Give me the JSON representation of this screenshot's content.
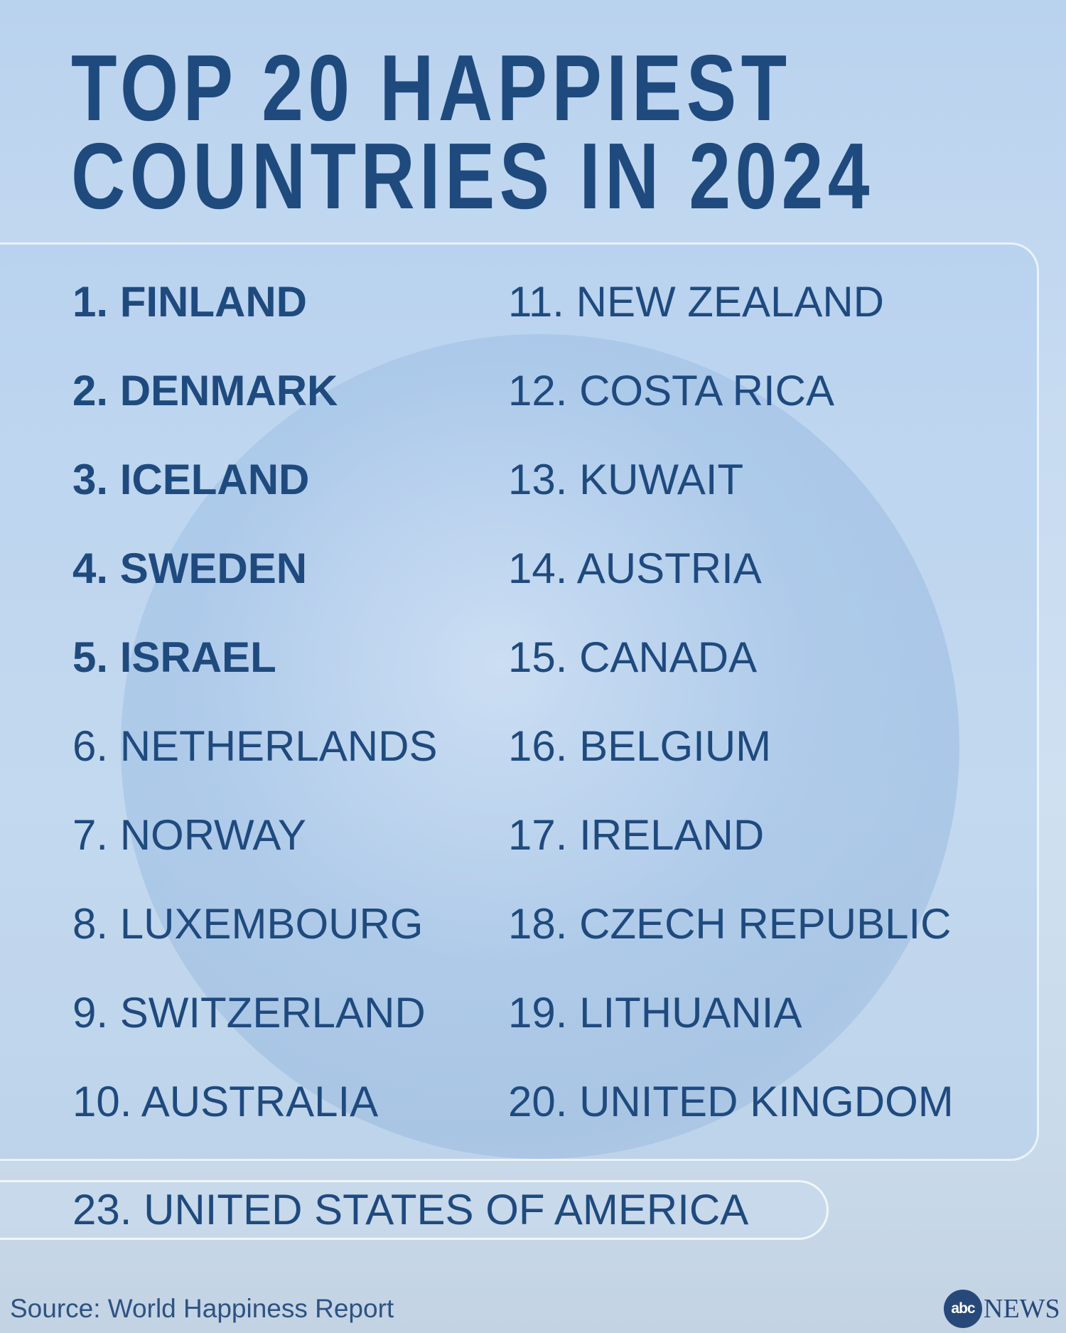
{
  "title": {
    "line1": "TOP 20 HAPPIEST",
    "line2": "COUNTRIES IN 2024"
  },
  "rankings": [
    {
      "label": "1. FINLAND",
      "bold": true
    },
    {
      "label": "2. DENMARK",
      "bold": true
    },
    {
      "label": "3. ICELAND",
      "bold": true
    },
    {
      "label": "4. SWEDEN",
      "bold": true
    },
    {
      "label": "5. ISRAEL",
      "bold": true
    },
    {
      "label": "6. NETHERLANDS",
      "bold": false
    },
    {
      "label": "7. NORWAY",
      "bold": false
    },
    {
      "label": "8. LUXEMBOURG",
      "bold": false
    },
    {
      "label": "9. SWITZERLAND",
      "bold": false
    },
    {
      "label": "10. AUSTRALIA",
      "bold": false
    },
    {
      "label": "11. NEW ZEALAND",
      "bold": false
    },
    {
      "label": "12. COSTA RICA",
      "bold": false
    },
    {
      "label": "13. KUWAIT",
      "bold": false
    },
    {
      "label": "14. AUSTRIA",
      "bold": false
    },
    {
      "label": "15. CANADA",
      "bold": false
    },
    {
      "label": "16. BELGIUM",
      "bold": false
    },
    {
      "label": "17. IRELAND",
      "bold": false
    },
    {
      "label": "18. CZECH REPUBLIC",
      "bold": false
    },
    {
      "label": "19. LITHUANIA",
      "bold": false
    },
    {
      "label": "20. UNITED KINGDOM",
      "bold": false
    }
  ],
  "highlight": "23. UNITED STATES OF AMERICA",
  "source": "Source: World Happiness Report",
  "logo": {
    "mark": "abc",
    "text": "NEWS"
  },
  "colors": {
    "text": "#1f4a7e",
    "background": "#c7dbf1"
  }
}
